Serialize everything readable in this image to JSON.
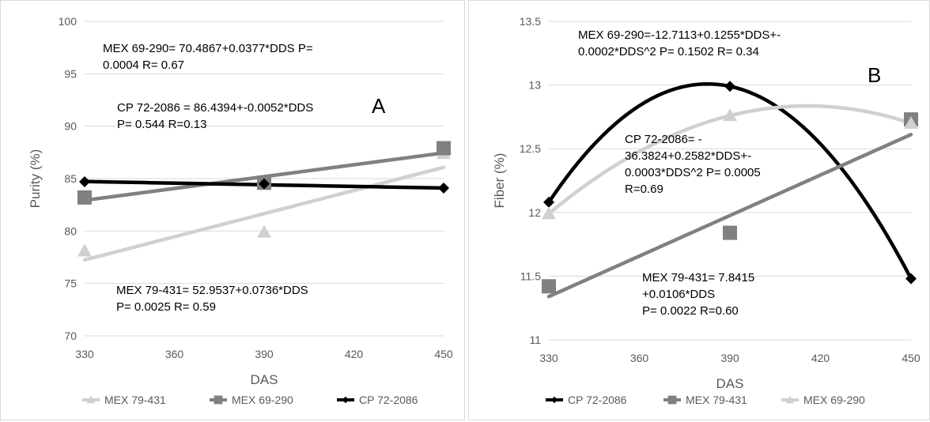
{
  "chart_data": [
    {
      "id": "A",
      "type": "scatter",
      "panel_label": "A",
      "xlabel": "DAS",
      "ylabel": "Purity (%)",
      "xlim": [
        330,
        450
      ],
      "ylim": [
        70,
        100
      ],
      "x_ticks": [
        "330",
        "360",
        "390",
        "420",
        "450"
      ],
      "y_ticks": [
        "70",
        "75",
        "80",
        "85",
        "90",
        "95",
        "100"
      ],
      "grid": "horizontal",
      "legend_position": "bottom",
      "legend": [
        "MEX 79-431",
        "MEX 69-290",
        "CP 72-2086"
      ],
      "series": [
        {
          "name": "MEX 79-431",
          "color": "#d0d0d0",
          "marker": "triangle",
          "x": [
            330,
            390,
            450
          ],
          "y": [
            78.1,
            79.9,
            87.4
          ],
          "trend": "linear",
          "trend_coef": [
            52.9537,
            0.0736
          ]
        },
        {
          "name": "MEX 69-290",
          "color": "#808080",
          "marker": "square",
          "x": [
            330,
            390,
            450
          ],
          "y": [
            83.2,
            84.6,
            87.9
          ],
          "trend": "linear",
          "trend_coef": [
            70.4867,
            0.0377
          ]
        },
        {
          "name": "CP 72-2086",
          "color": "#000000",
          "marker": "diamond",
          "x": [
            330,
            390,
            450
          ],
          "y": [
            84.7,
            84.5,
            84.1
          ],
          "trend": "linear",
          "trend_coef": [
            86.4394,
            -0.0052
          ]
        }
      ],
      "annotations": [
        {
          "lines": [
            "MEX 69-290= 70.4867+0.0377*DDS  P=",
            "0.0004 R= 0.67"
          ]
        },
        {
          "lines": [
            "CP 72-2086  = 86.4394+-0.0052*DDS",
            "P= 0.544 R=0.13"
          ]
        },
        {
          "lines": [
            "MEX 79-431= 52.9537+0.0736*DDS",
            "P= 0.0025 R= 0.59"
          ]
        }
      ]
    },
    {
      "id": "B",
      "type": "scatter",
      "panel_label": "B",
      "xlabel": "DAS",
      "ylabel": "Fiber (%)",
      "xlim": [
        330,
        450
      ],
      "ylim": [
        11,
        13.5
      ],
      "x_ticks": [
        "330",
        "360",
        "390",
        "420",
        "450"
      ],
      "y_ticks": [
        "11",
        "11.5",
        "12",
        "12.5",
        "13",
        "13.5"
      ],
      "grid": "horizontal",
      "legend_position": "bottom",
      "legend": [
        "CP 72-2086",
        "MEX 79-431",
        "MEX 69-290"
      ],
      "series": [
        {
          "name": "CP 72-2086",
          "color": "#000000",
          "marker": "diamond",
          "x": [
            330,
            390,
            450
          ],
          "y": [
            12.08,
            12.99,
            11.48
          ],
          "trend": "quadratic_through_points"
        },
        {
          "name": "MEX 79-431",
          "color": "#808080",
          "marker": "square",
          "x": [
            330,
            390,
            450
          ],
          "y": [
            11.42,
            11.84,
            12.73
          ],
          "trend": "linear",
          "trend_coef": [
            7.8415,
            0.0106
          ]
        },
        {
          "name": "MEX 69-290",
          "color": "#d0d0d0",
          "marker": "triangle",
          "x": [
            330,
            390,
            450
          ],
          "y": [
            11.99,
            12.76,
            12.7
          ],
          "trend": "quadratic_through_points"
        }
      ],
      "annotations": [
        {
          "lines": [
            "MEX 69-290=-12.7113+0.1255*DDS+-",
            "0.0002*DDS^2 P= 0.1502 R= 0.34"
          ]
        },
        {
          "lines": [
            "CP 72-2086= -",
            "36.3824+0.2582*DDS+-",
            "0.0003*DDS^2 P= 0.0005",
            "R=0.69"
          ]
        },
        {
          "lines": [
            "MEX 79-431= 7.8415",
            "+0.0106*DDS",
            " P= 0.0022 R=0.60"
          ]
        }
      ]
    }
  ]
}
